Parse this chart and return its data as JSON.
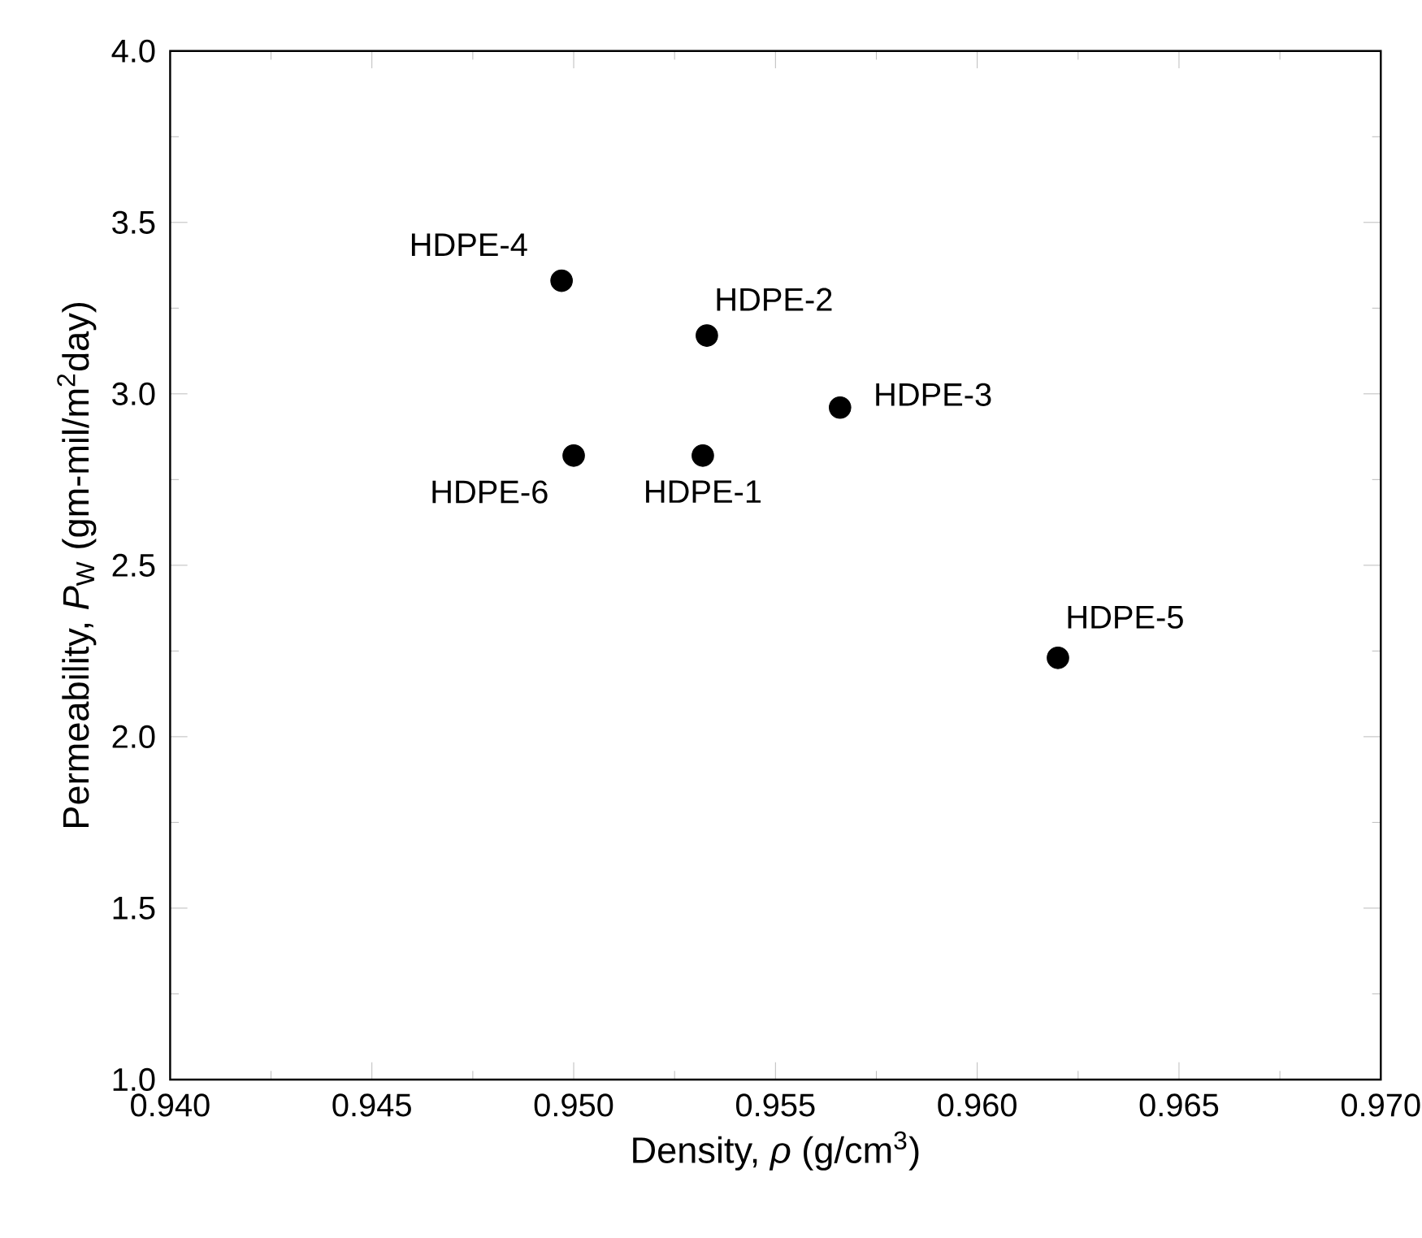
{
  "chart_data": {
    "type": "scatter",
    "xlabel": "Density, *ρ* (g/cm$^{3}$)",
    "ylabel": "Permeability, *P*$_{W}$ (gm-mil/m$^{2}$day)",
    "x": [
      0.9532,
      0.9533,
      0.9566,
      0.9497,
      0.962,
      0.95
    ],
    "values": [
      2.82,
      3.17,
      2.96,
      3.33,
      2.23,
      2.82
    ],
    "color": "#000000",
    "marker": "circle",
    "xlim": [
      0.94,
      0.97
    ],
    "ylim": [
      1.0,
      4.0
    ],
    "xticks": [
      {
        "value": 0.94,
        "label": "0.940"
      },
      {
        "value": 0.945,
        "label": "0.945"
      },
      {
        "value": 0.95,
        "label": "0.950"
      },
      {
        "value": 0.955,
        "label": "0.955"
      },
      {
        "value": 0.96,
        "label": "0.960"
      },
      {
        "value": 0.965,
        "label": "0.965"
      },
      {
        "value": 0.97,
        "label": "0.970"
      }
    ],
    "yticks": [
      {
        "value": 1.0,
        "label": "1.0"
      },
      {
        "value": 1.5,
        "label": "1.5"
      },
      {
        "value": 2.0,
        "label": "2.0"
      },
      {
        "value": 2.5,
        "label": "2.5"
      },
      {
        "value": 3.0,
        "label": "3.0"
      },
      {
        "value": 3.5,
        "label": "3.5"
      },
      {
        "value": 4.0,
        "label": "4.0"
      }
    ],
    "annotations": [
      {
        "text": "HDPE-1",
        "x": 0.9532,
        "y": 2.82
      },
      {
        "text": "HDPE-2",
        "x": 0.9533,
        "y": 3.17
      },
      {
        "text": "HDPE-3",
        "x": 0.9566,
        "y": 2.96
      },
      {
        "text": "HDPE-4",
        "x": 0.9497,
        "y": 3.33
      },
      {
        "text": "HDPE-5",
        "x": 0.962,
        "y": 2.23
      },
      {
        "text": "HDPE-6",
        "x": 0.95,
        "y": 2.82
      }
    ]
  }
}
